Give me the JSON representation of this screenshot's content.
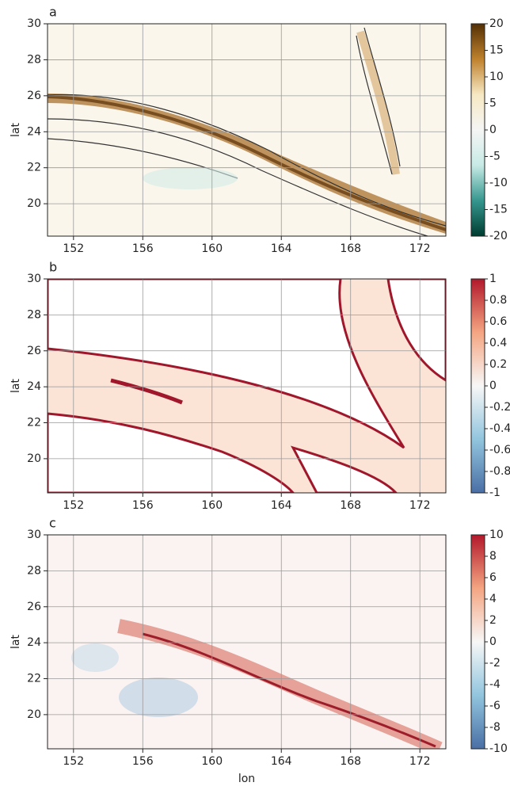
{
  "chart_data": [
    {
      "type": "map",
      "title": "a",
      "ylabel": "lat",
      "xlim": [
        150.5,
        173.5
      ],
      "xticks": [
        152,
        156,
        160,
        164,
        168,
        172
      ],
      "ylim": [
        18.2,
        30
      ],
      "yticks": [
        20,
        22,
        24,
        26,
        28,
        30
      ],
      "grid": true,
      "colorbar": {
        "lim": [
          -20,
          20
        ],
        "ticks": [
          20,
          15,
          10,
          5,
          0,
          -5,
          -10,
          -15,
          -20
        ],
        "colormap": [
          "#003c30",
          "#35978f",
          "#c7eae5",
          "#f5f5f5",
          "#f6e8c3",
          "#bf812d",
          "#543005"
        ]
      }
    },
    {
      "type": "map",
      "title": "b",
      "ylabel": "lat",
      "xlim": [
        150.5,
        173.5
      ],
      "xticks": [
        152,
        156,
        160,
        164,
        168,
        172
      ],
      "ylim": [
        18.1,
        30
      ],
      "yticks": [
        20,
        22,
        24,
        26,
        28,
        30
      ],
      "grid": true,
      "colorbar": {
        "lim": [
          -1,
          1
        ],
        "ticks": [
          1,
          0.8,
          0.6,
          0.4,
          0.2,
          0,
          -0.2,
          -0.4,
          -0.6,
          -0.8,
          -1
        ],
        "colormap": [
          "#4a6fa5",
          "#92c5de",
          "#f7f7f7",
          "#f4a582",
          "#b2182b"
        ]
      }
    },
    {
      "type": "map",
      "title": "c",
      "ylabel": "lat",
      "xlabel": "lon",
      "xlim": [
        150.5,
        173.5
      ],
      "xticks": [
        152,
        156,
        160,
        164,
        168,
        172
      ],
      "ylim": [
        18.1,
        30
      ],
      "yticks": [
        20,
        22,
        24,
        26,
        28,
        30
      ],
      "grid": true,
      "colorbar": {
        "lim": [
          -10,
          10
        ],
        "ticks": [
          10,
          8,
          6,
          4,
          2,
          0,
          -2,
          -4,
          -6,
          -8,
          -10
        ],
        "colormap": [
          "#4a6fa5",
          "#92c5de",
          "#f7f7f7",
          "#f4a582",
          "#b2182b"
        ]
      }
    }
  ]
}
